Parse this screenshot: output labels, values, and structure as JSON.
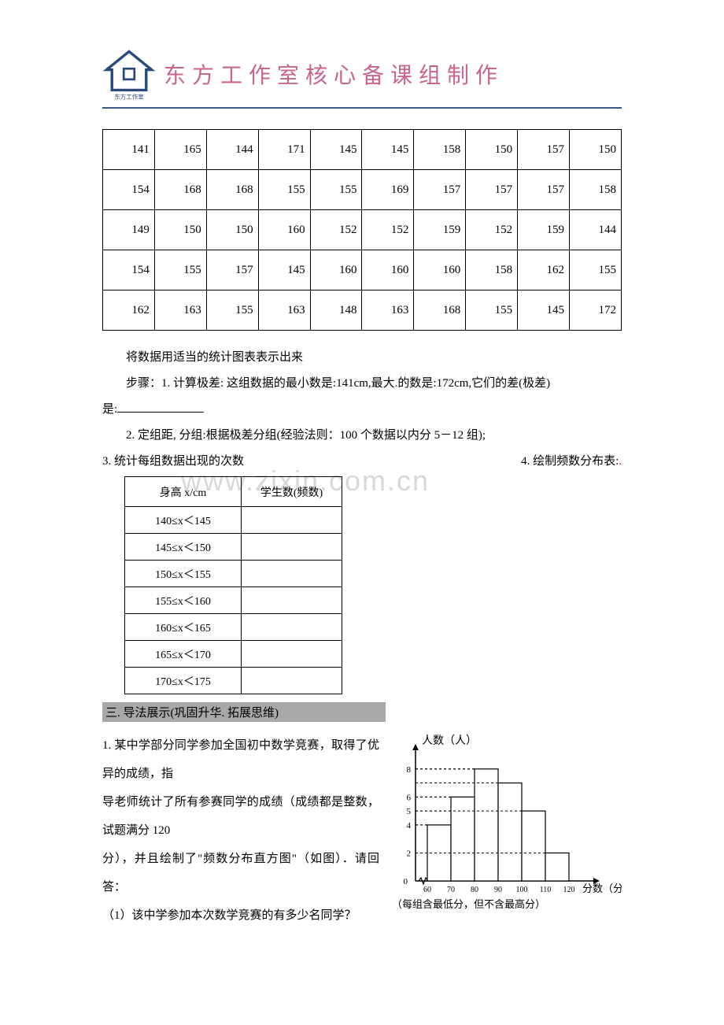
{
  "header": {
    "title": "东方工作室核心备课组制作",
    "logo_label": "东方工作室",
    "rule_color": "#3a5a8a",
    "title_color": "#c8648e"
  },
  "watermark": "www.zixin.com.cn",
  "data_table": {
    "rows": [
      [
        141,
        165,
        144,
        171,
        145,
        145,
        158,
        150,
        157,
        150
      ],
      [
        154,
        168,
        168,
        155,
        155,
        169,
        157,
        157,
        157,
        158
      ],
      [
        149,
        150,
        150,
        160,
        152,
        152,
        159,
        152,
        159,
        144
      ],
      [
        154,
        155,
        157,
        145,
        160,
        160,
        160,
        158,
        162,
        155
      ],
      [
        162,
        163,
        155,
        163,
        148,
        163,
        168,
        155,
        145,
        172
      ]
    ],
    "cell_fontsize": 15,
    "border_color": "#000000"
  },
  "paragraphs": {
    "p1": "将数据用适当的统计图表表示出来",
    "p2_prefix": "步骤：1. 计算极差: 这组数据的最小数是:141cm,最大",
    "p2_mid": "的数是:172cm,它们的差(极差)",
    "p2_line2_prefix": "是:",
    "p3": "2. 定组距, 分组:根据极差分组(经验法则：100 个数据以内分 5－12 组);",
    "p4_left": "3. 统计每组数据出现的次数",
    "p4_right": "4. 绘制频数分布表:"
  },
  "freq_table": {
    "col1_header": "身高 x/cm",
    "col2_header": "学生数(频数)",
    "rows": [
      "140≤x＜145",
      "145≤x＜150",
      "150≤x＜155",
      "155≤x＜160",
      "160≤x＜165",
      "165≤x＜170",
      "170≤x＜175"
    ]
  },
  "section3": {
    "bar": "三. 导法展示(巩固升华. 拓展思维)",
    "q1_l1": "1. 某中学部分同学参加全国初中数学竞赛，取得了优异的成绩，指",
    "q1_l2": "导老师统计了所有参赛同学的成绩（成绩都是整数，试题满分 120",
    "q1_l3": "分），并且绘制了\"频数分布直方图\"（如图）．请回答：",
    "q1_sub1": "（1）该中学参加本次数学竞赛的有多少名同学？"
  },
  "histogram": {
    "type": "bar",
    "y_label": "人数（人）",
    "x_label": "分数（分）",
    "x_ticks": [
      60,
      70,
      80,
      90,
      100,
      110,
      120
    ],
    "y_ticks": [
      0,
      2,
      4,
      5,
      6,
      8
    ],
    "bars": [
      {
        "x0": 60,
        "x1": 70,
        "h": 4
      },
      {
        "x0": 70,
        "x1": 80,
        "h": 6
      },
      {
        "x0": 80,
        "x1": 90,
        "h": 8
      },
      {
        "x0": 90,
        "x1": 100,
        "h": 7
      },
      {
        "x0": 100,
        "x1": 110,
        "h": 5
      },
      {
        "x0": 110,
        "x1": 120,
        "h": 2
      }
    ],
    "note": "（每组含最低分，但不含最高分）",
    "axis_color": "#000000",
    "bar_fill": "#ffffff",
    "bar_stroke": "#000000",
    "dash_color": "#000000",
    "ylim": [
      0,
      9
    ],
    "xlim": [
      55,
      125
    ],
    "font_family": "KaiTi"
  }
}
